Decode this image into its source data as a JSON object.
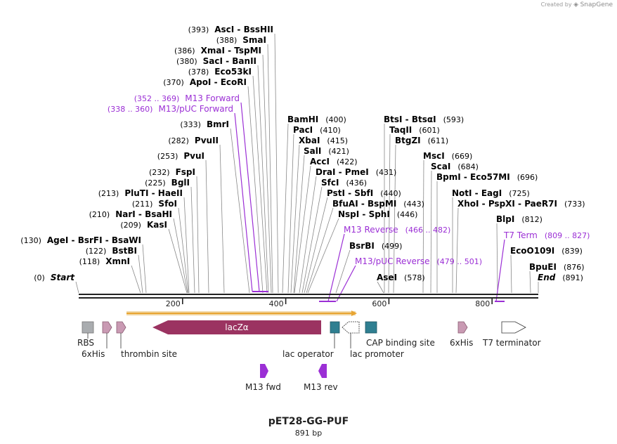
{
  "credit": {
    "prefix": "Created by",
    "brand": "SnapGene"
  },
  "title": "pET28-GG-PUF",
  "size_label": "891 bp",
  "colors": {
    "primer": "#9b2fd5",
    "enzyme": "#000000",
    "lacZ": "#9b3361",
    "teal": "#2f7f91",
    "pink": "#c99ab3",
    "gray": "#a9acaf",
    "orf": "#e8a533"
  },
  "ruler": {
    "ticks": [
      "200",
      "400",
      "600",
      "800"
    ]
  },
  "sites": [
    {
      "pos": "(0)",
      "label": "Start",
      "italic": true,
      "end": ""
    },
    {
      "pos": "(118)",
      "label": "XmnI",
      "end": ""
    },
    {
      "pos": "(122)",
      "label": "BstBI",
      "end": ""
    },
    {
      "pos": "(130)",
      "label": "AgeI  - BsrFI  - BsaWI",
      "end": ""
    },
    {
      "pos": "(209)",
      "label": "KasI",
      "end": ""
    },
    {
      "pos": "(210)",
      "label": "NarI  - BsaHI",
      "end": ""
    },
    {
      "pos": "(211)",
      "label": "SfoI",
      "end": ""
    },
    {
      "pos": "(213)",
      "label": "PluTI  - HaeII",
      "end": ""
    },
    {
      "pos": "(225)",
      "label": "BglI",
      "end": ""
    },
    {
      "pos": "(232)",
      "label": "FspI",
      "end": ""
    },
    {
      "pos": "(253)",
      "label": "PvuI",
      "end": ""
    },
    {
      "pos": "(282)",
      "label": "PvuII",
      "end": ""
    },
    {
      "pos": "(333)",
      "label": "BmrI",
      "end": ""
    },
    {
      "pos": "(338 .. 360)",
      "label": "M13/pUC Forward",
      "primer": true,
      "end": ""
    },
    {
      "pos": "(352 .. 369)",
      "label": "M13 Forward",
      "primer": true,
      "end": ""
    },
    {
      "pos": "(370)",
      "label": "ApoI  - EcoRI",
      "end": ""
    },
    {
      "pos": "(378)",
      "label": "Eco53kI",
      "end": ""
    },
    {
      "pos": "(380)",
      "label": "SacI  - BanII",
      "end": ""
    },
    {
      "pos": "(386)",
      "label": "XmaI  - TspMI",
      "end": ""
    },
    {
      "pos": "(388)",
      "label": "SmaI",
      "end": ""
    },
    {
      "pos": "(393)",
      "label": "AscI  - BssHII",
      "end": ""
    },
    {
      "label": "BamHI",
      "end": "(400)"
    },
    {
      "label": "PacI",
      "end": "(410)"
    },
    {
      "label": "XbaI",
      "end": "(415)"
    },
    {
      "label": "SalI",
      "end": "(421)"
    },
    {
      "label": "AccI",
      "end": "(422)"
    },
    {
      "label": "DraI  - PmeI",
      "end": "(431)"
    },
    {
      "label": "SfcI",
      "end": "(436)"
    },
    {
      "label": "PstI  - SbfI",
      "end": "(440)"
    },
    {
      "label": "BfuAI  - BspMI",
      "end": "(443)"
    },
    {
      "label": "NspI  - SphI",
      "end": "(446)"
    },
    {
      "label": "M13 Reverse",
      "end": "(466 .. 482)",
      "primer": true
    },
    {
      "label": "BsrBI",
      "end": "(499)"
    },
    {
      "label": "M13/pUC Reverse",
      "end": "(479 .. 501)",
      "primer": true
    },
    {
      "label": "AseI",
      "end": "(578)"
    },
    {
      "label": "BtsI  - BtsαI",
      "end": "(593)"
    },
    {
      "label": "TaqII",
      "end": "(601)"
    },
    {
      "label": "BtgZI",
      "end": "(611)"
    },
    {
      "label": "MscI",
      "end": "(669)"
    },
    {
      "label": "ScaI",
      "end": "(684)"
    },
    {
      "label": "BpmI  - Eco57MI",
      "end": "(696)"
    },
    {
      "label": "NotI  - EagI",
      "end": "(725)"
    },
    {
      "label": "XhoI  - PspXI  - PaeR7I",
      "end": "(733)"
    },
    {
      "label": "BlpI",
      "end": "(812)"
    },
    {
      "label": "T7 Term",
      "end": "(809 .. 827)",
      "primer": true
    },
    {
      "label": "EcoO109I",
      "end": "(839)"
    },
    {
      "label": "BpuEI",
      "end": "(876)"
    },
    {
      "label": "End",
      "end": "(891)",
      "italic": true
    }
  ],
  "features": [
    {
      "name": "RBS",
      "kind": "box"
    },
    {
      "name": "6xHis",
      "kind": "arrow-right"
    },
    {
      "name": "thrombin site",
      "kind": "arrow-right"
    },
    {
      "name": "lacZα",
      "kind": "big-left"
    },
    {
      "name": "lac operator",
      "kind": "box"
    },
    {
      "name": "lac promoter",
      "kind": "arrow-left-outline"
    },
    {
      "name": "CAP binding site",
      "kind": "box"
    },
    {
      "name": "6xHis",
      "kind": "arrow-right"
    },
    {
      "name": "T7 terminator",
      "kind": "arrow-right-outline"
    }
  ],
  "primers": [
    {
      "name": "M13 fwd",
      "direction": "right"
    },
    {
      "name": "M13 rev",
      "direction": "left"
    }
  ]
}
